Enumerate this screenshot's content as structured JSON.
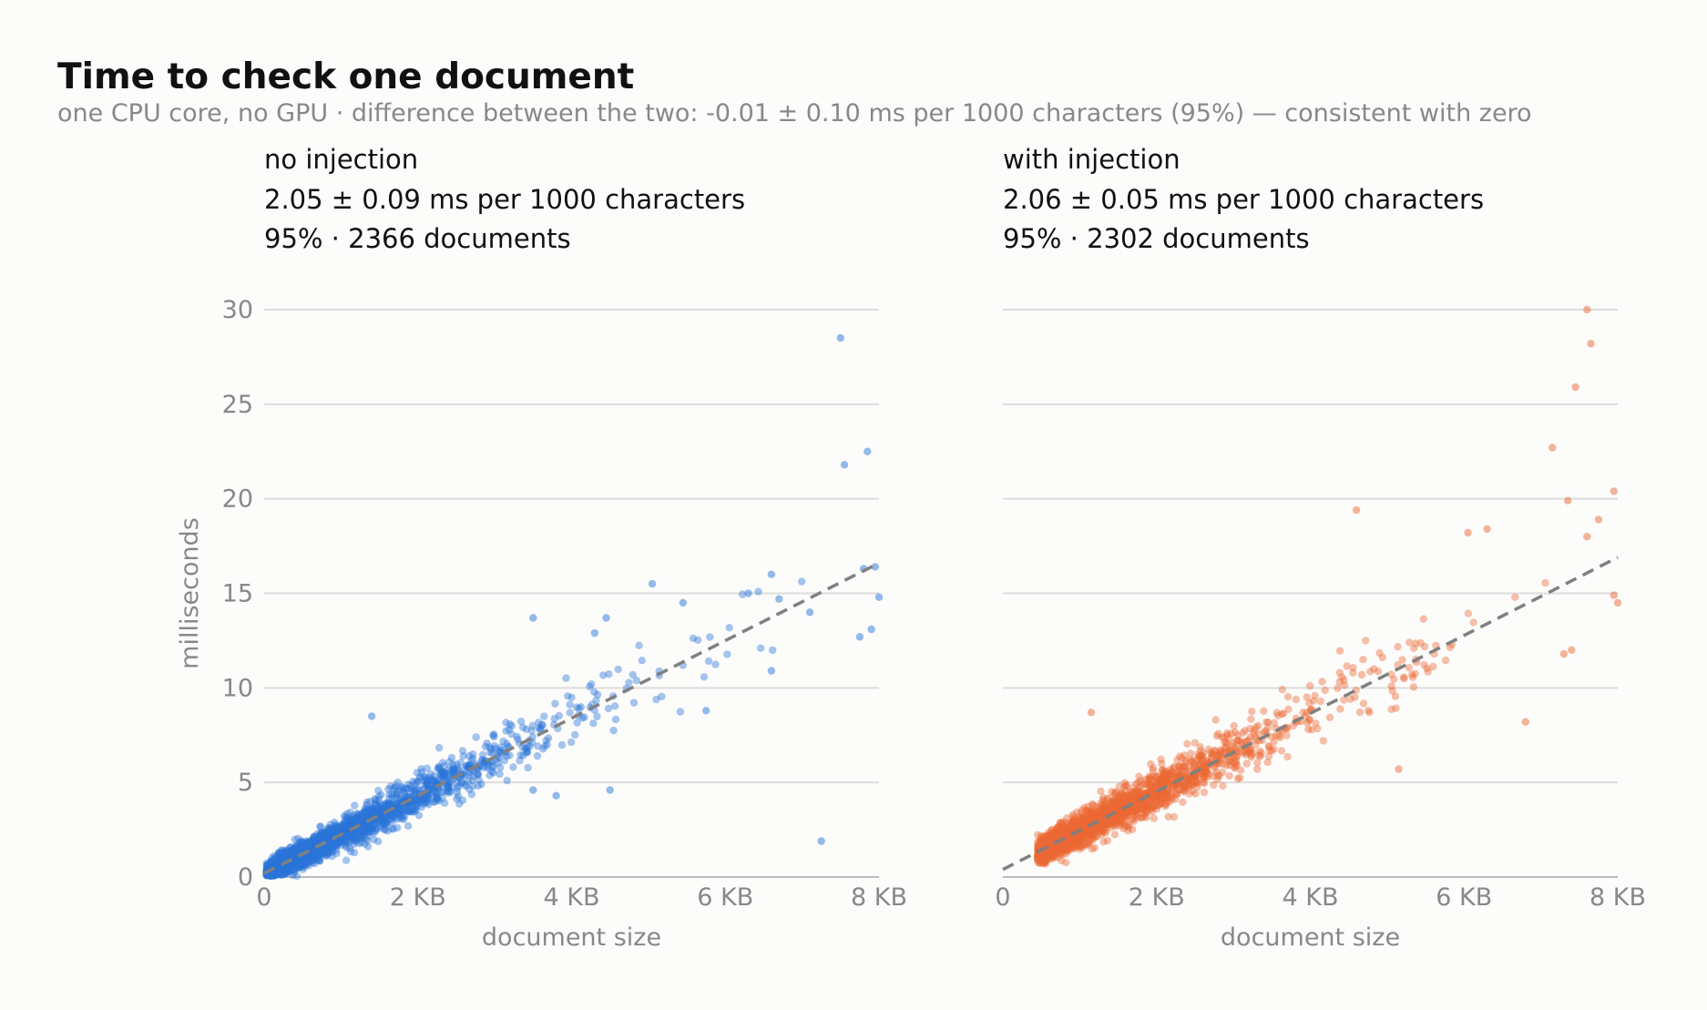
{
  "title": "Time to check one document",
  "subtitle": "one CPU core, no GPU · difference between the two: -0.01 ± 0.10 ms per 1000 characters (95%) — consistent with zero",
  "colors": {
    "left": "#2a75d8",
    "right": "#ec6a35",
    "fit": "#808080"
  },
  "chart_data": [
    {
      "type": "scatter",
      "panel_title": "no injection",
      "estimate": "2.05 ± 0.09 ms per 1000 characters",
      "footnote": "95% · 2366 documents",
      "n_points": 2366,
      "xlabel": "document size",
      "ylabel": "milliseconds",
      "xlim": [
        0,
        8
      ],
      "ylim": [
        0,
        30
      ],
      "x_ticks": [
        "0",
        "2 KB",
        "4 KB",
        "6 KB",
        "8 KB"
      ],
      "y_ticks": [
        "0",
        "5",
        "10",
        "15",
        "20",
        "25",
        "30"
      ],
      "fit_line": {
        "x": [
          0,
          8
        ],
        "y": [
          0.2,
          16.6
        ]
      },
      "outliers": [
        {
          "x": 7.5,
          "y": 28.5
        },
        {
          "x": 7.55,
          "y": 21.8
        },
        {
          "x": 7.85,
          "y": 22.5
        },
        {
          "x": 7.25,
          "y": 1.9
        },
        {
          "x": 5.05,
          "y": 15.5
        },
        {
          "x": 5.45,
          "y": 14.5
        },
        {
          "x": 6.6,
          "y": 16.0
        },
        {
          "x": 6.3,
          "y": 15.0
        },
        {
          "x": 6.7,
          "y": 14.7
        },
        {
          "x": 7.8,
          "y": 16.3
        },
        {
          "x": 7.95,
          "y": 16.4
        },
        {
          "x": 8.0,
          "y": 14.8
        },
        {
          "x": 7.9,
          "y": 13.1
        },
        {
          "x": 7.75,
          "y": 12.7
        },
        {
          "x": 7.1,
          "y": 14.0
        },
        {
          "x": 6.6,
          "y": 10.9
        },
        {
          "x": 5.75,
          "y": 8.8
        },
        {
          "x": 4.5,
          "y": 4.6
        },
        {
          "x": 3.8,
          "y": 4.3
        },
        {
          "x": 3.5,
          "y": 4.6
        },
        {
          "x": 1.4,
          "y": 8.5
        },
        {
          "x": 3.5,
          "y": 13.7
        },
        {
          "x": 4.45,
          "y": 13.7
        },
        {
          "x": 4.3,
          "y": 12.9
        }
      ]
    },
    {
      "type": "scatter",
      "panel_title": "with injection",
      "estimate": "2.06 ± 0.05 ms per 1000 characters",
      "footnote": "95% · 2302 documents",
      "n_points": 2302,
      "xlabel": "document size",
      "xlim": [
        0,
        8
      ],
      "ylim": [
        0,
        30
      ],
      "x_ticks": [
        "0",
        "2 KB",
        "4 KB",
        "6 KB",
        "8 KB"
      ],
      "y_ticks": [
        "0",
        "5",
        "10",
        "15",
        "20",
        "25",
        "30"
      ],
      "fit_line": {
        "x": [
          0,
          8
        ],
        "y": [
          0.4,
          16.9
        ]
      },
      "outliers": [
        {
          "x": 7.6,
          "y": 30.0
        },
        {
          "x": 7.65,
          "y": 28.2
        },
        {
          "x": 7.45,
          "y": 25.9
        },
        {
          "x": 7.15,
          "y": 22.7
        },
        {
          "x": 7.35,
          "y": 19.9
        },
        {
          "x": 7.95,
          "y": 20.4
        },
        {
          "x": 7.75,
          "y": 18.9
        },
        {
          "x": 4.6,
          "y": 19.4
        },
        {
          "x": 7.6,
          "y": 18.0
        },
        {
          "x": 7.95,
          "y": 14.9
        },
        {
          "x": 8.0,
          "y": 14.5
        },
        {
          "x": 5.15,
          "y": 5.7
        },
        {
          "x": 6.8,
          "y": 8.2
        },
        {
          "x": 6.05,
          "y": 18.2
        },
        {
          "x": 6.3,
          "y": 18.4
        },
        {
          "x": 7.4,
          "y": 12.0
        },
        {
          "x": 7.3,
          "y": 11.8
        },
        {
          "x": 1.15,
          "y": 8.7
        }
      ]
    }
  ]
}
